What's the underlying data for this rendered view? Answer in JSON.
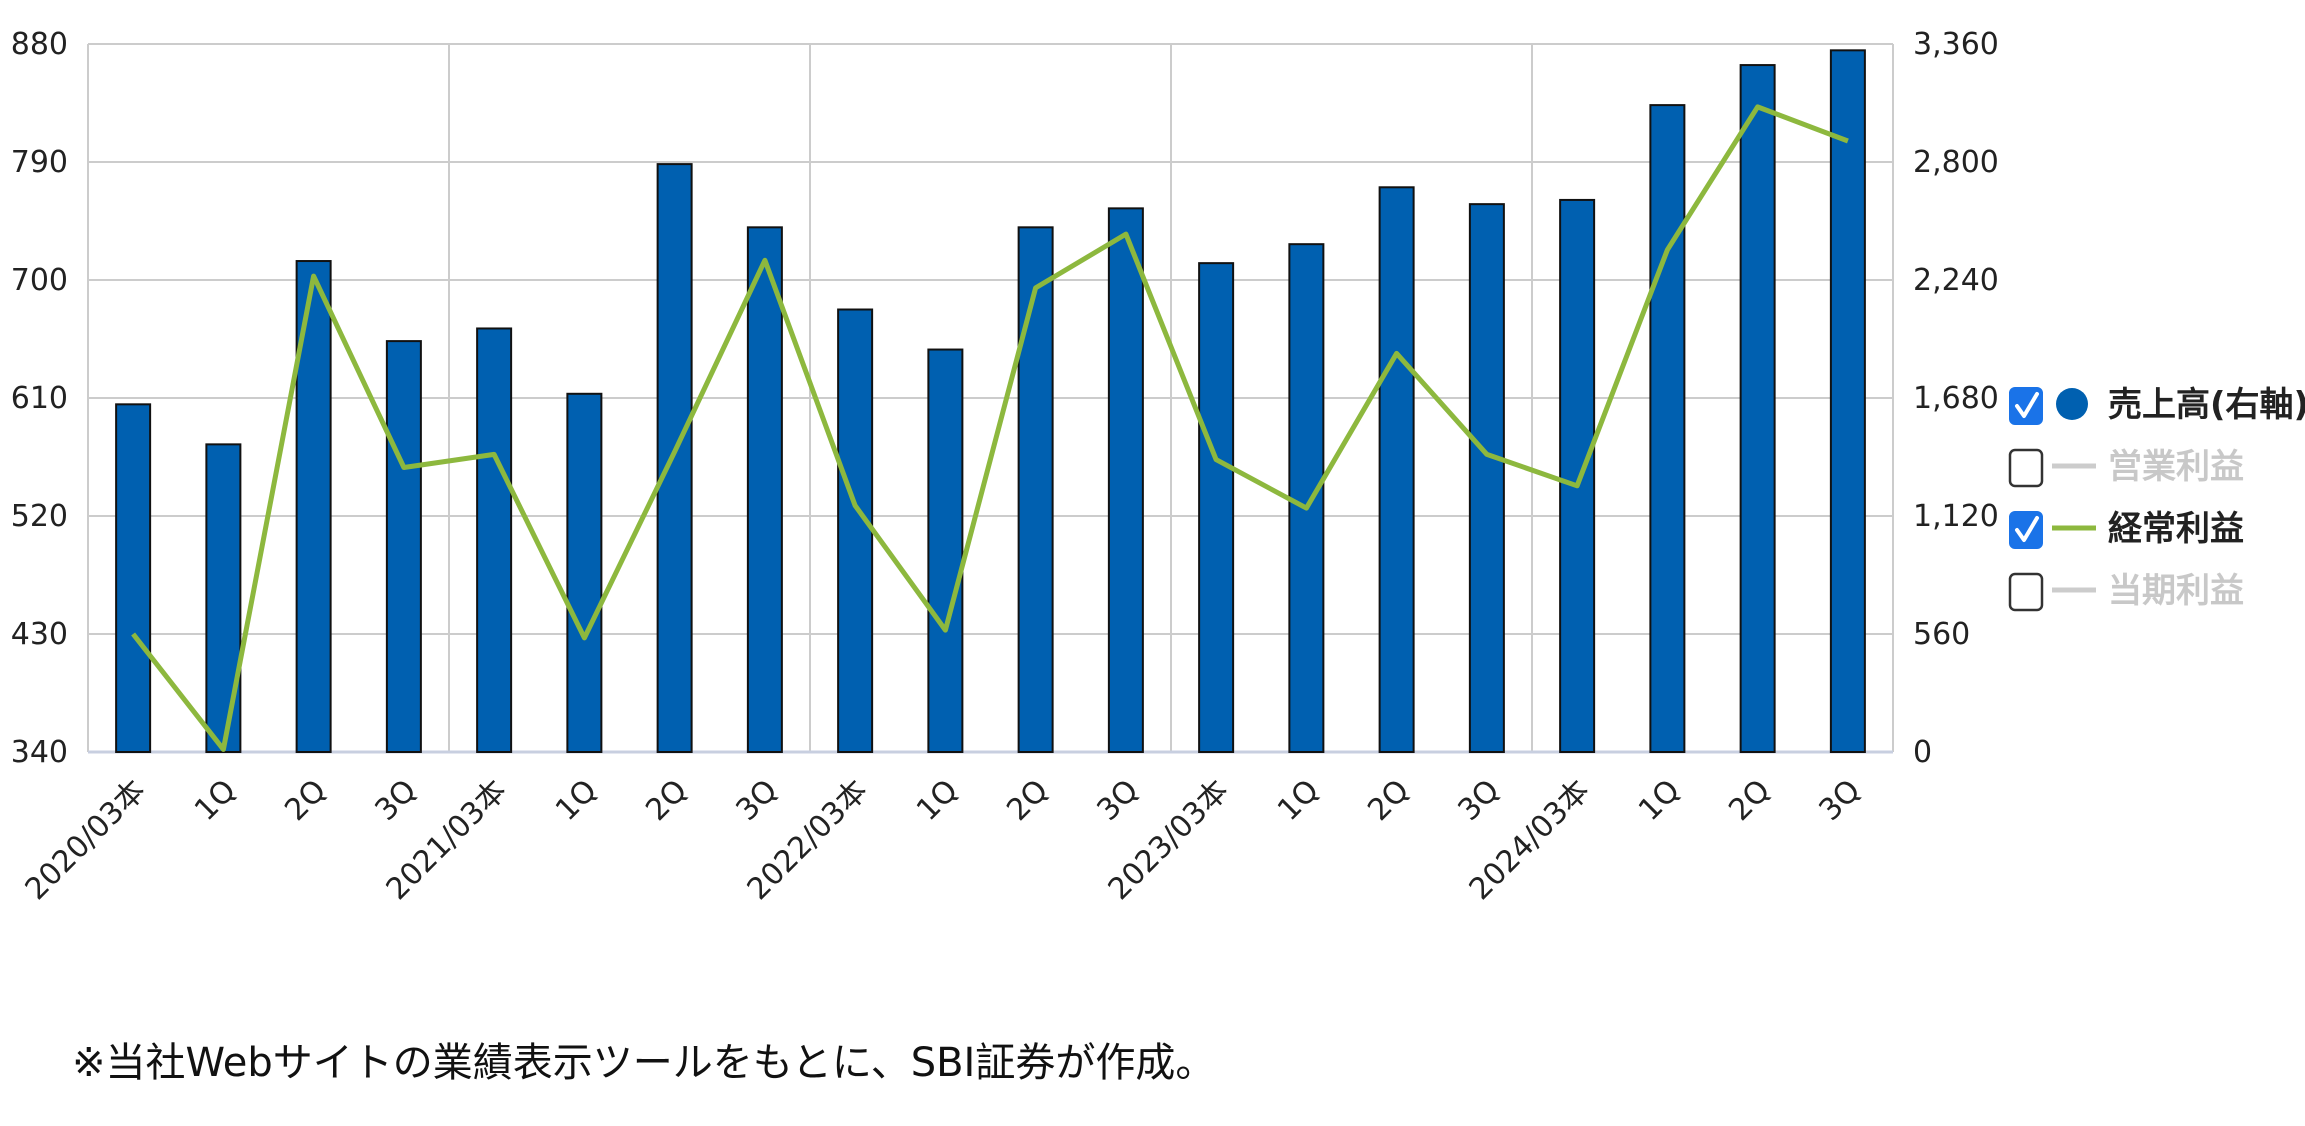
{
  "chart_data": {
    "type": "bar",
    "categories": [
      "2020/03本",
      "1Q",
      "2Q",
      "3Q",
      "2021/03本",
      "1Q",
      "2Q",
      "3Q",
      "2022/03本",
      "1Q",
      "2Q",
      "3Q",
      "2023/03本",
      "1Q",
      "2Q",
      "3Q",
      "2024/03本",
      "1Q",
      "2Q",
      "3Q"
    ],
    "series": [
      {
        "name": "売上高(右軸)",
        "type": "bar",
        "axis": "right",
        "color": "#0060b0",
        "values": [
          1650,
          1460,
          2330,
          1950,
          2010,
          1700,
          2790,
          2490,
          2100,
          1910,
          2490,
          2580,
          2320,
          2410,
          2680,
          2600,
          2620,
          3070,
          3260,
          3330
        ]
      },
      {
        "name": "経常利益",
        "type": "line",
        "axis": "left",
        "color": "#8db83e",
        "values": [
          430,
          342,
          703,
          557,
          567,
          427,
          569,
          715,
          528,
          433,
          694,
          735,
          563,
          526,
          644,
          567,
          543,
          723,
          832,
          806
        ]
      }
    ],
    "left_axis": {
      "ylim": [
        340,
        880
      ],
      "ticks": [
        "340",
        "430",
        "520",
        "610",
        "700",
        "790",
        "880"
      ]
    },
    "right_axis": {
      "ylim": [
        0,
        3360
      ],
      "ticks": [
        "0",
        "560",
        "1,120",
        "1,680",
        "2,240",
        "2,800",
        "3,360"
      ]
    },
    "grid": true,
    "legend": {
      "placement": "right",
      "items": [
        {
          "label": "売上高(右軸)",
          "checked": true,
          "marker": "circle",
          "color": "#0060b0",
          "active": true
        },
        {
          "label": "営業利益",
          "checked": false,
          "marker": "dash",
          "color": "#cccccc",
          "active": false
        },
        {
          "label": "経常利益",
          "checked": true,
          "marker": "dash",
          "color": "#8db83e",
          "active": true
        },
        {
          "label": "当期利益",
          "checked": false,
          "marker": "dash",
          "color": "#cccccc",
          "active": false
        }
      ]
    }
  },
  "footnote": "※当社Webサイトの業績表示ツールをもとに、SBI証券が作成。"
}
